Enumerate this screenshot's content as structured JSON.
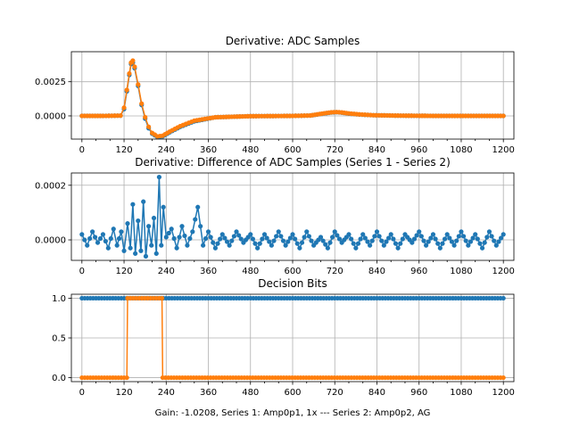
{
  "figure": {
    "xlabel": "Gain: -1.0208, Series 1: Amp0p1, 1x --- Series 2: Amp0p2, AG"
  },
  "colors": {
    "series1": "#1f77b4",
    "series2": "#ff7f0e",
    "grid": "#b0b0b0",
    "axis": "#000000",
    "background": "#ffffff"
  },
  "chart_data": [
    {
      "type": "line",
      "title": "Derivative: ADC Samples",
      "xlim": [
        -30,
        1230
      ],
      "ylim": [
        -0.0017,
        0.0047
      ],
      "grid": true,
      "x_ticks": [
        0,
        120,
        240,
        360,
        480,
        600,
        720,
        840,
        960,
        1080,
        1200
      ],
      "x_tick_labels": [
        "0",
        "120",
        "240",
        "360",
        "480",
        "600",
        "720",
        "840",
        "960",
        "1080",
        "1200"
      ],
      "y_ticks": [
        0.0,
        0.0025
      ],
      "y_tick_labels": [
        "0.0000",
        "0.0025"
      ],
      "series": [
        {
          "name": "Series 1",
          "color": "#1f77b4",
          "marker": true,
          "x": [
            0,
            60,
            110,
            120,
            128,
            135,
            140,
            145,
            150,
            160,
            170,
            180,
            190,
            200,
            215,
            230,
            250,
            280,
            320,
            380,
            480,
            600,
            650,
            670,
            690,
            710,
            725,
            740,
            760,
            790,
            830,
            900,
            1000,
            1100,
            1200
          ],
          "y": [
            0,
            0,
            2e-05,
            0.0005,
            0.0018,
            0.003,
            0.0038,
            0.0039,
            0.0035,
            0.0022,
            0.0008,
            -0.0002,
            -0.0009,
            -0.0013,
            -0.00155,
            -0.0015,
            -0.0012,
            -0.0008,
            -0.0004,
            -0.0001,
            -2e-05,
            0,
            3e-05,
            0.0001,
            0.00018,
            0.00025,
            0.00027,
            0.00024,
            0.00017,
            0.0001,
            5e-05,
            2e-05,
            0,
            0,
            0
          ]
        },
        {
          "name": "Series 2",
          "color": "#ff7f0e",
          "marker": true,
          "x": [
            0,
            60,
            110,
            120,
            128,
            135,
            140,
            145,
            150,
            160,
            170,
            180,
            190,
            200,
            215,
            230,
            250,
            280,
            320,
            380,
            480,
            600,
            650,
            670,
            690,
            710,
            725,
            740,
            760,
            790,
            830,
            900,
            1000,
            1100,
            1200
          ],
          "y": [
            0,
            0,
            2e-05,
            0.0006,
            0.0019,
            0.0031,
            0.0039,
            0.00405,
            0.0036,
            0.0023,
            0.0009,
            -0.0001,
            -0.0008,
            -0.00125,
            -0.0015,
            -0.00145,
            -0.00115,
            -0.00075,
            -0.00035,
            -0.0001,
            -2e-05,
            0,
            3e-05,
            0.00011,
            0.00019,
            0.00026,
            0.00028,
            0.00025,
            0.00018,
            0.00011,
            5e-05,
            2e-05,
            0,
            0,
            0
          ]
        }
      ]
    },
    {
      "type": "line",
      "title": "Derivative: Difference of ADC Samples (Series 1 - Series 2)",
      "xlim": [
        -30,
        1230
      ],
      "ylim": [
        -7.5e-05,
        0.000245
      ],
      "grid": true,
      "x_ticks": [
        0,
        120,
        240,
        360,
        480,
        600,
        720,
        840,
        960,
        1080,
        1200
      ],
      "x_tick_labels": [
        "0",
        "120",
        "240",
        "360",
        "480",
        "600",
        "720",
        "840",
        "960",
        "1080",
        "1200"
      ],
      "y_ticks": [
        0.0,
        0.0002
      ],
      "y_tick_labels": [
        "0.0000",
        "0.0002"
      ],
      "series": [
        {
          "name": "Difference",
          "color": "#1f77b4",
          "marker": true,
          "x": [
            0,
            15,
            30,
            45,
            60,
            75,
            90,
            100,
            112,
            120,
            130,
            138,
            145,
            152,
            160,
            168,
            175,
            182,
            190,
            198,
            205,
            212,
            220,
            226,
            232,
            240,
            255,
            270,
            285,
            300,
            315,
            330,
            345,
            360,
            380,
            400,
            420,
            440,
            460,
            480,
            500,
            520,
            540,
            560,
            580,
            600,
            620,
            640,
            660,
            680,
            700,
            720,
            740,
            760,
            780,
            800,
            820,
            840,
            860,
            880,
            900,
            920,
            940,
            960,
            980,
            1000,
            1020,
            1040,
            1060,
            1080,
            1100,
            1120,
            1140,
            1160,
            1180,
            1200
          ],
          "y": [
            2e-05,
            -2e-05,
            3e-05,
            -1e-05,
            2e-05,
            -3e-05,
            4e-05,
            -2e-05,
            3e-05,
            -4e-05,
            6e-05,
            -3e-05,
            0.00013,
            -5e-05,
            7e-05,
            -4e-05,
            0.00014,
            -6e-05,
            5e-05,
            -2e-05,
            8e-05,
            -5e-05,
            0.00023,
            -2e-05,
            0.00012,
            1e-05,
            4e-05,
            -3e-05,
            5e-05,
            -2e-05,
            3e-05,
            0.00012,
            -2e-05,
            3e-05,
            -3e-05,
            2e-05,
            -2e-05,
            3e-05,
            -1e-05,
            2e-05,
            -3e-05,
            2e-05,
            -2e-05,
            3e-05,
            -2e-05,
            2e-05,
            -3e-05,
            3e-05,
            -2e-05,
            1e-05,
            -3e-05,
            3e-05,
            -1e-05,
            2e-05,
            -3e-05,
            2e-05,
            -2e-05,
            3e-05,
            -2e-05,
            2e-05,
            -3e-05,
            2e-05,
            -1e-05,
            3e-05,
            -2e-05,
            2e-05,
            -3e-05,
            2e-05,
            -2e-05,
            3e-05,
            -2e-05,
            2e-05,
            -3e-05,
            3e-05,
            -2e-05,
            2e-05
          ]
        }
      ]
    },
    {
      "type": "line",
      "title": "Decision Bits",
      "xlim": [
        -30,
        1230
      ],
      "ylim": [
        -0.05,
        1.05
      ],
      "grid": true,
      "x_ticks": [
        0,
        120,
        240,
        360,
        480,
        600,
        720,
        840,
        960,
        1080,
        1200
      ],
      "x_tick_labels": [
        "0",
        "120",
        "240",
        "360",
        "480",
        "600",
        "720",
        "840",
        "960",
        "1080",
        "1200"
      ],
      "y_ticks": [
        0.0,
        0.5,
        1.0
      ],
      "y_tick_labels": [
        "0.0",
        "0.5",
        "1.0"
      ],
      "series": [
        {
          "name": "Series 1",
          "color": "#1f77b4",
          "marker": true,
          "x": [
            0,
            1200
          ],
          "y": [
            1,
            1
          ]
        },
        {
          "name": "Series 2",
          "color": "#ff7f0e",
          "marker": true,
          "x": [
            0,
            128,
            130,
            228,
            230,
            1200
          ],
          "y": [
            0,
            0,
            1,
            1,
            0,
            0
          ]
        }
      ]
    }
  ]
}
